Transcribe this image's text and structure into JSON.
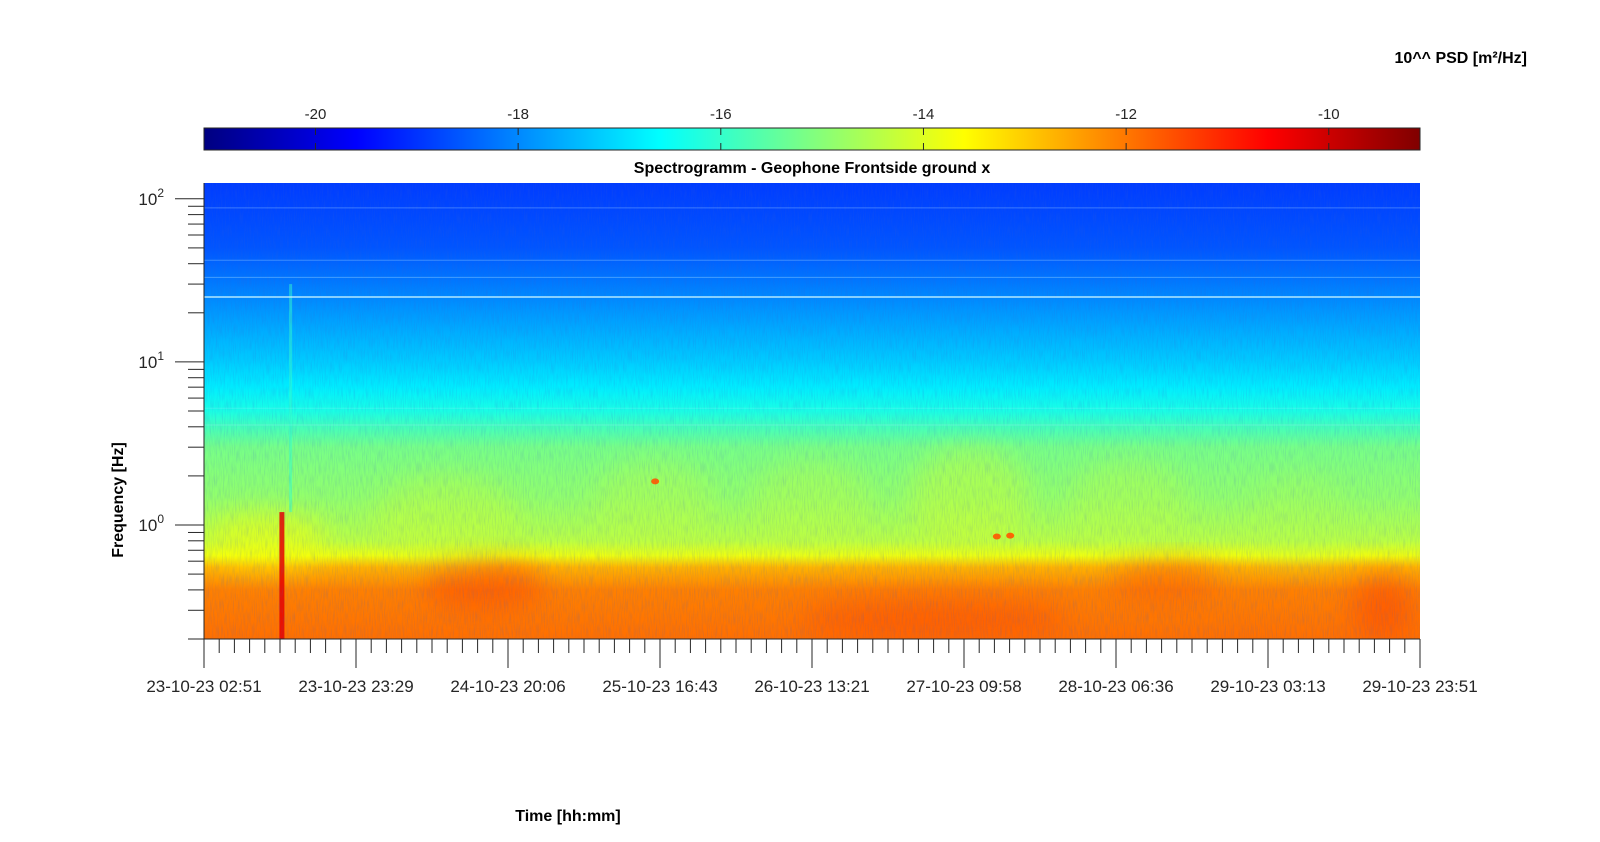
{
  "chart_data": {
    "type": "heatmap",
    "title": "Spectrogramm - Geophone Frontside ground x",
    "xlabel": "Time [hh:mm]",
    "ylabel": "Frequency [Hz]",
    "y_scale": "log",
    "ylim": [
      0.2,
      125
    ],
    "y_ticks": [
      {
        "value": 1,
        "base": "10",
        "exponent": "0"
      },
      {
        "value": 10,
        "base": "10",
        "exponent": "1"
      },
      {
        "value": 100,
        "base": "10",
        "exponent": "2"
      }
    ],
    "x_ticks": [
      "23-10-23 02:51",
      "23-10-23 23:29",
      "24-10-23 20:06",
      "25-10-23 16:43",
      "26-10-23 13:21",
      "27-10-23 09:58",
      "28-10-23 06:36",
      "29-10-23 03:13",
      "29-10-23 23:51"
    ],
    "colorbar": {
      "label": "10^^ PSD [m²/Hz]",
      "colormap": "jet",
      "range": [
        -21.1,
        -9.1
      ],
      "ticks": [
        "-20",
        "-18",
        "-16",
        "-14",
        "-12",
        "-10"
      ],
      "tick_values": [
        -20,
        -18,
        -16,
        -14,
        -12,
        -10
      ],
      "location": "top"
    },
    "psd_profile": {
      "frequency_hz": [
        0.2,
        0.4,
        0.55,
        0.65,
        0.8,
        1,
        1.5,
        2,
        3,
        4,
        5,
        7,
        10,
        20,
        50,
        125
      ],
      "log10_psd": [
        -11.9,
        -12.1,
        -12.7,
        -13.8,
        -14.4,
        -14.6,
        -14.9,
        -15.0,
        -15.2,
        -15.8,
        -16.3,
        -16.8,
        -17.2,
        -17.8,
        -18.6,
        -18.9
      ]
    },
    "series": []
  }
}
